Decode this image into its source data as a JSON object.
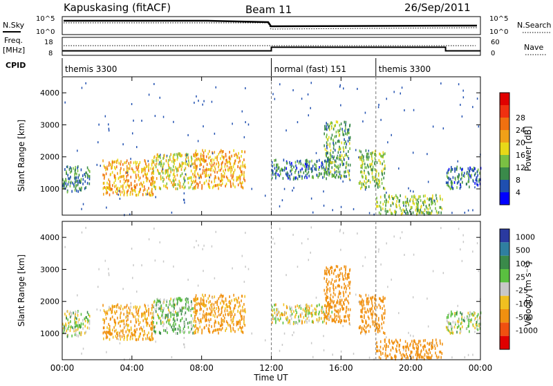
{
  "header": {
    "station": "Kapuskasing (fitACF)",
    "beam": "Beam 11",
    "date": "26/Sep/2011"
  },
  "noise_panel": {
    "left_label": "N.Sky",
    "left_ticks": [
      "10^5",
      "10^0"
    ],
    "right_ticks": [
      "10^5",
      "10^0"
    ],
    "right_label": "N.Search"
  },
  "freq_panel": {
    "left_label_line1": "Freq.",
    "left_label_line2": "[MHz]",
    "left_ticks": [
      "18",
      "8"
    ],
    "right_ticks": [
      "60",
      "0"
    ],
    "right_label": "Nave"
  },
  "cpid": {
    "label": "CPID",
    "segments": [
      {
        "name": "themis 3300",
        "start_hour": 0,
        "end_hour": 12
      },
      {
        "name": "normal (fast) 151",
        "start_hour": 12,
        "end_hour": 18
      },
      {
        "name": "themis 3300",
        "start_hour": 18,
        "end_hour": 24
      }
    ]
  },
  "axes": {
    "x_label": "Time UT",
    "x_ticks": [
      "00:00",
      "04:00",
      "08:00",
      "12:00",
      "16:00",
      "20:00",
      "00:00"
    ],
    "y_label": "Slant Range [km]",
    "y_ticks": [
      "1000",
      "2000",
      "3000",
      "4000"
    ]
  },
  "power_bar": {
    "label": "Power [dB]",
    "ticks": [
      "4",
      "8",
      "12",
      "16",
      "20",
      "24",
      "28"
    ],
    "colors": [
      "#0000ff",
      "#1f4fb0",
      "#3a8a4a",
      "#7ac043",
      "#e8d818",
      "#f0a018",
      "#f07010",
      "#f03010",
      "#e00000"
    ]
  },
  "velocity_bar": {
    "label": "Velocity [m s⁻¹]",
    "ticks": [
      "1000",
      "500",
      "100",
      "25",
      "-25",
      "-100",
      "-500",
      "-1000"
    ],
    "colors": [
      "#2a3aa0",
      "#2f7fa0",
      "#3a8a4a",
      "#5ac040",
      "#c8c8c8",
      "#f0c020",
      "#f09010",
      "#f05010",
      "#e00000"
    ]
  },
  "chart_data": {
    "type": "heatmap",
    "title": "Kapuskasing (fitACF) Beam 11 26/Sep/2011",
    "xlabel": "Time UT",
    "ylabel": "Slant Range [km]",
    "xlim_hours": [
      0,
      24
    ],
    "ylim_km": [
      180,
      4500
    ],
    "dashed_time_markers_hours": [
      12,
      18
    ],
    "freq_mhz_by_segment": [
      {
        "start_hour": 0,
        "end_hour": 12,
        "freq": 10.5
      },
      {
        "start_hour": 12,
        "end_hour": 22,
        "freq": 12.5
      },
      {
        "start_hour": 22,
        "end_hour": 24,
        "freq": 10.5
      }
    ],
    "echo_regions": [
      {
        "t0": 0.0,
        "t1": 1.6,
        "r0": 900,
        "r1": 1700,
        "power": 10,
        "velocity": 20
      },
      {
        "t0": 2.3,
        "t1": 5.2,
        "r0": 800,
        "r1": 1900,
        "power": 22,
        "velocity": -120
      },
      {
        "t0": 5.2,
        "t1": 7.5,
        "r0": 1000,
        "r1": 2100,
        "power": 18,
        "velocity": 60
      },
      {
        "t0": 7.5,
        "t1": 10.5,
        "r0": 1000,
        "r1": 2200,
        "power": 22,
        "velocity": -150
      },
      {
        "t0": 12.0,
        "t1": 15.5,
        "r0": 1300,
        "r1": 1900,
        "power": 9,
        "velocity": -20
      },
      {
        "t0": 15.0,
        "t1": 16.5,
        "r0": 1300,
        "r1": 3100,
        "power": 12,
        "velocity": -300
      },
      {
        "t0": 17.0,
        "t1": 18.5,
        "r0": 1000,
        "r1": 2200,
        "power": 14,
        "velocity": -200
      },
      {
        "t0": 18.0,
        "t1": 21.8,
        "r0": 200,
        "r1": 800,
        "power": 14,
        "velocity": -250
      },
      {
        "t0": 22.0,
        "t1": 24.0,
        "r0": 1000,
        "r1": 1700,
        "power": 8,
        "velocity": 15
      }
    ]
  }
}
